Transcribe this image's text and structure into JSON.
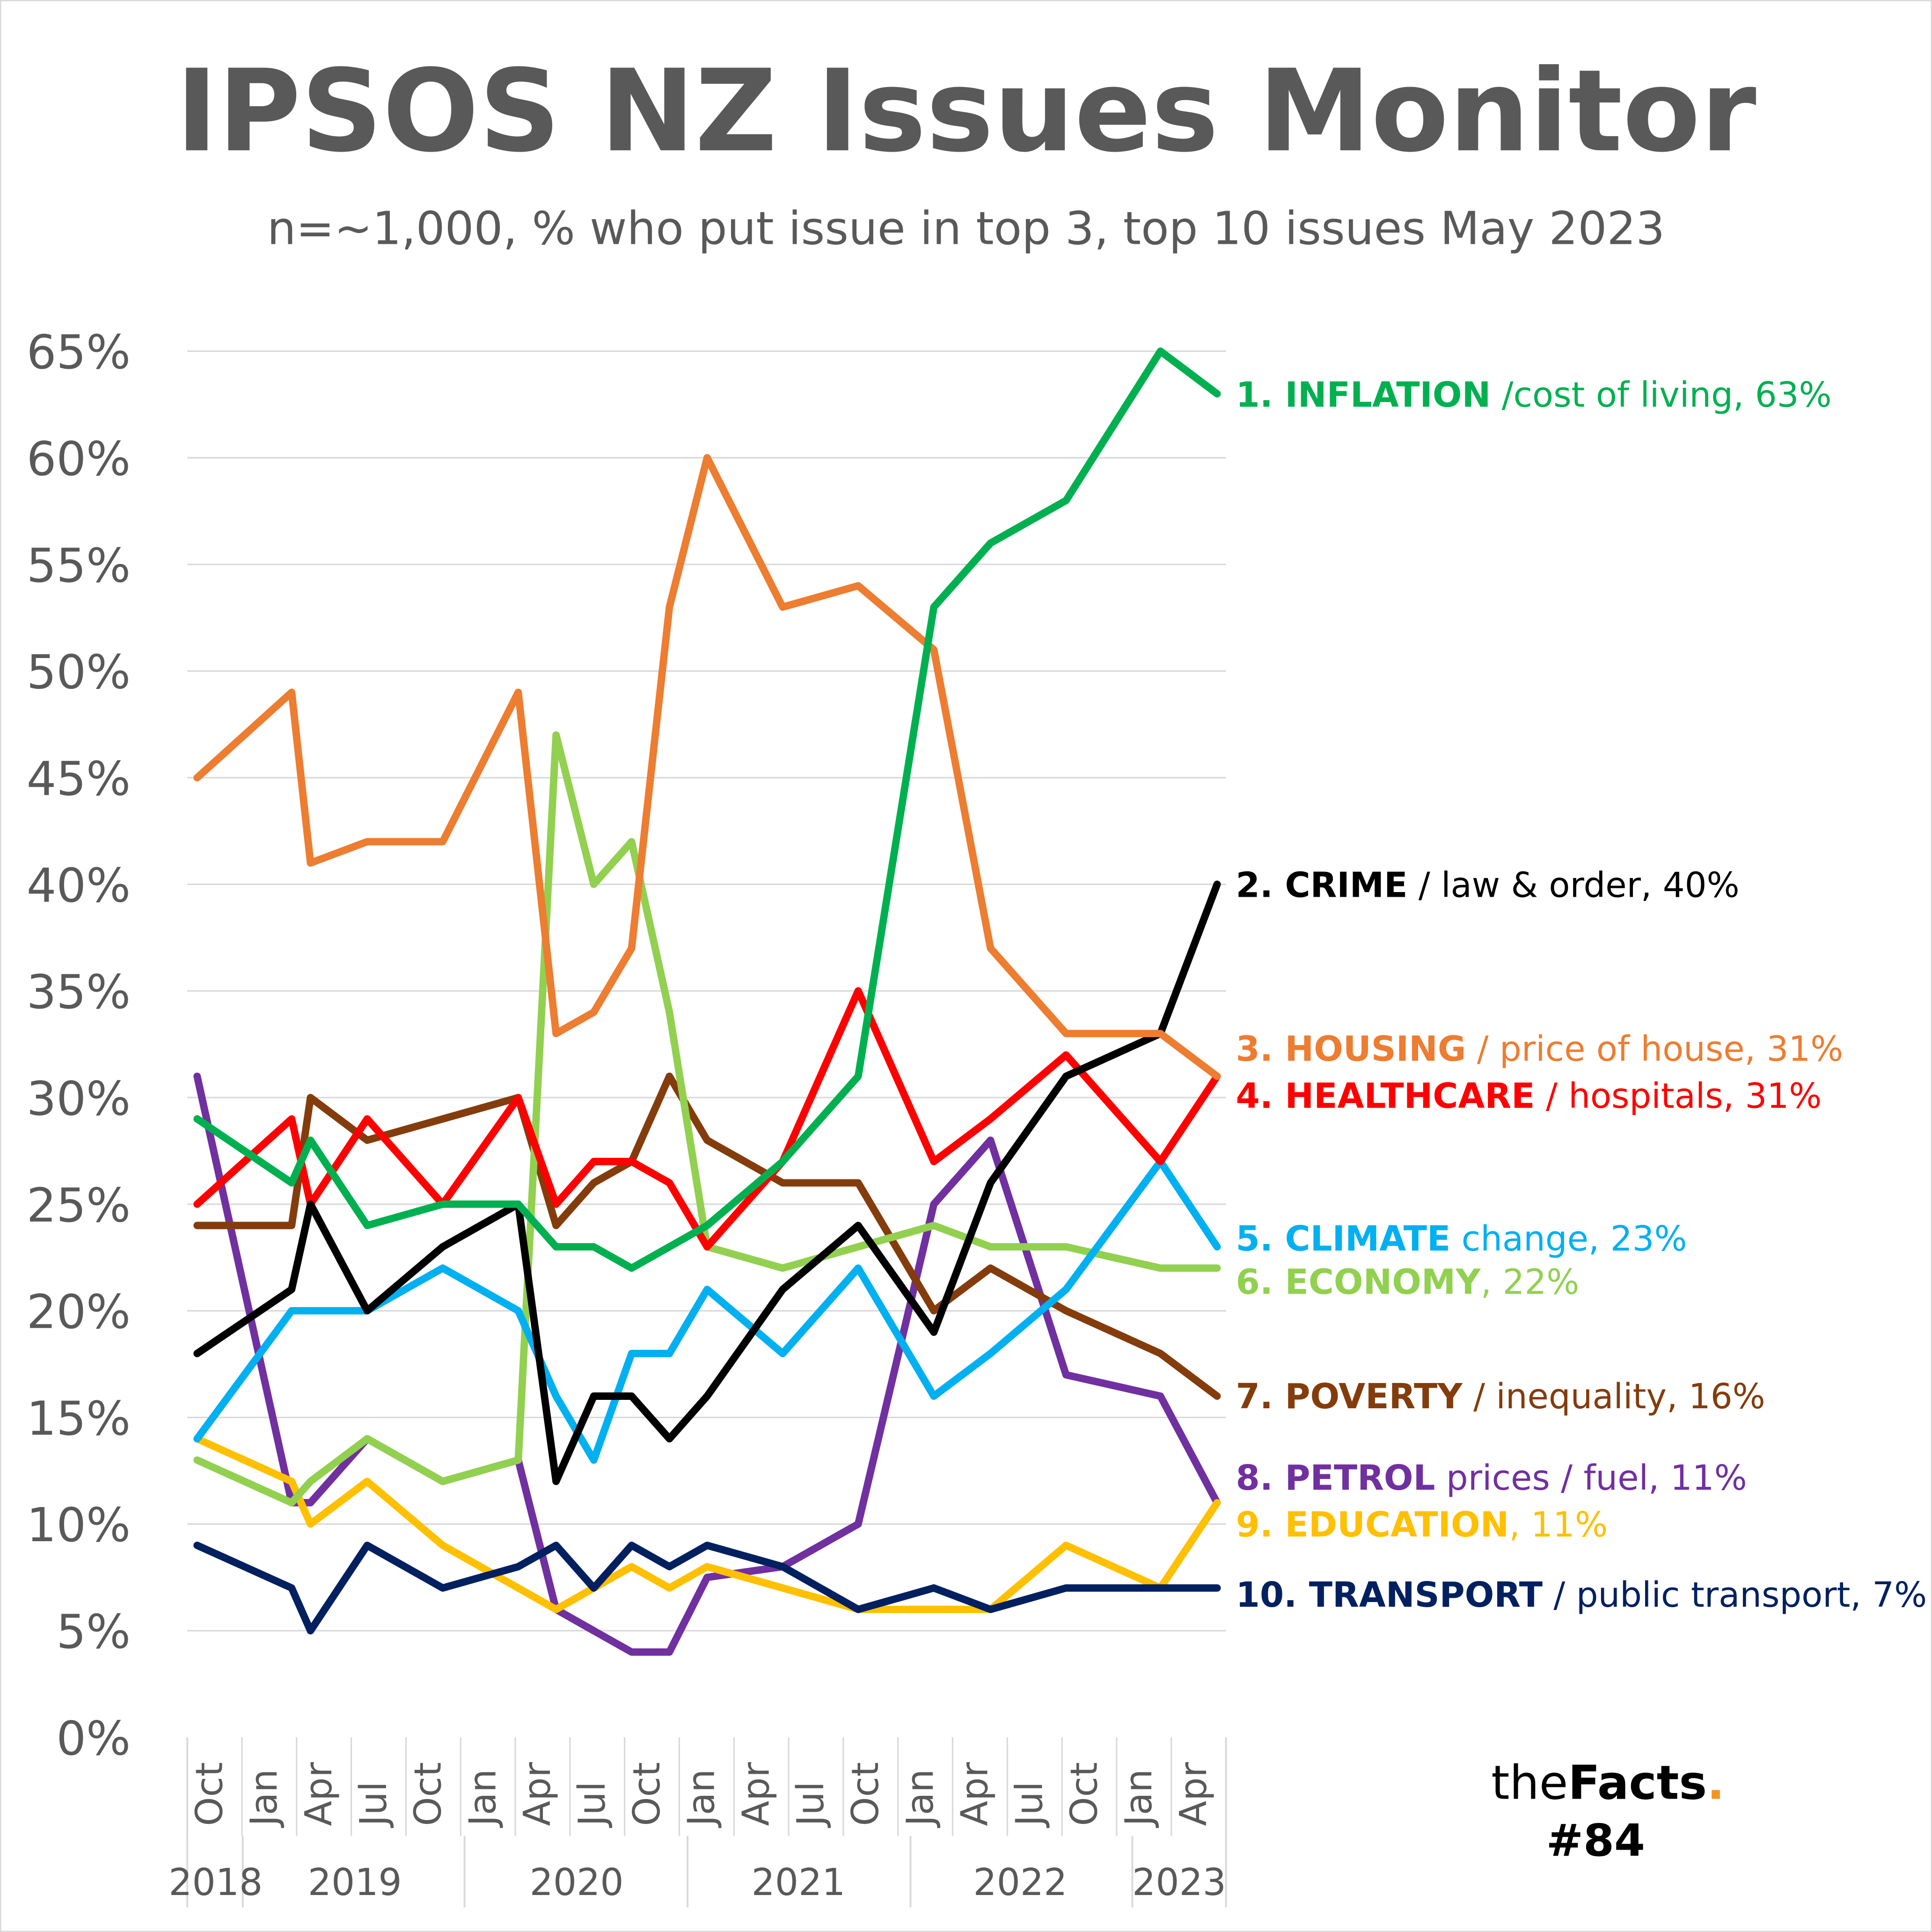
{
  "chart_data": {
    "type": "line",
    "title": "IPSOS NZ Issues Monitor",
    "subtitle": "n=~1,000, % who put issue in top 3, top 10 issues May 2023",
    "xlabel": "",
    "ylabel": "",
    "ylim": [
      0,
      65
    ],
    "y_ticks": [
      "0%",
      "5%",
      "10%",
      "15%",
      "20%",
      "25%",
      "30%",
      "35%",
      "40%",
      "45%",
      "50%",
      "55%",
      "60%",
      "65%"
    ],
    "x_unit": "months since Oct 2018",
    "x_tick_labels": [
      "Oct",
      "Jan",
      "Apr",
      "Jul",
      "Oct",
      "Jan",
      "Apr",
      "Jul",
      "Oct",
      "Jan",
      "Apr",
      "Jul",
      "Oct",
      "Jan",
      "Apr",
      "Jul",
      "Oct",
      "Jan",
      "Apr"
    ],
    "year_labels": [
      "2018",
      "2019",
      "2020",
      "2021",
      "2022",
      "2023"
    ],
    "x": [
      0,
      5,
      6,
      9,
      13,
      17,
      19,
      21,
      23,
      25,
      27,
      31,
      35,
      39,
      42,
      46,
      51,
      54
    ],
    "grid": true,
    "series": [
      {
        "name": "INFLATION",
        "rank": "1.",
        "label_bold": "1. INFLATION",
        "label_rest": " /cost of living, 63%",
        "color": "#00B050",
        "values": [
          29,
          26,
          28,
          24,
          25,
          25,
          23,
          23,
          22,
          23,
          24,
          27,
          31,
          53,
          56,
          58,
          65,
          63
        ]
      },
      {
        "name": "CRIME",
        "rank": "2.",
        "label_bold": "2. CRIME",
        "label_rest": " / law & order, 40%",
        "color": "#000000",
        "values": [
          18,
          21,
          25,
          20,
          23,
          25,
          12,
          16,
          16,
          14,
          16,
          21,
          24,
          19,
          26,
          31,
          33,
          40
        ]
      },
      {
        "name": "HOUSING",
        "rank": "3.",
        "label_bold": "3. HOUSING",
        "label_rest": " / price of house, 31%",
        "color": "#ED7D31",
        "values": [
          45,
          49,
          41,
          42,
          42,
          49,
          33,
          34,
          37,
          53,
          60,
          53,
          54,
          51,
          37,
          33,
          33,
          31
        ]
      },
      {
        "name": "HEALTHCARE",
        "rank": "4.",
        "label_bold": "4. HEALTHCARE",
        "label_rest": " / hospitals, 31%",
        "color": "#FF0000",
        "values": [
          25,
          29,
          25,
          29,
          25,
          30,
          25,
          27,
          27,
          26,
          23,
          27,
          35,
          27,
          29,
          32,
          27,
          31
        ]
      },
      {
        "name": "CLIMATE",
        "rank": "5.",
        "label_bold": "5. CLIMATE",
        "label_rest": " change, 23%",
        "color": "#00B0F0",
        "values": [
          14,
          20,
          20,
          20,
          22,
          20,
          16,
          13,
          18,
          18,
          21,
          18,
          22,
          16,
          18,
          21,
          27,
          23
        ]
      },
      {
        "name": "ECONOMY",
        "rank": "6.",
        "label_bold": "6. ECONOMY",
        "label_rest": ", 22%",
        "color": "#92D050",
        "values": [
          13,
          11,
          12,
          14,
          12,
          13,
          47,
          40,
          42,
          34,
          23,
          22,
          23,
          24,
          23,
          23,
          22,
          22
        ]
      },
      {
        "name": "POVERTY",
        "rank": "7.",
        "label_bold": "7. POVERTY",
        "label_rest": " / inequality, 16%",
        "color": "#843C0C",
        "values": [
          24,
          24,
          30,
          28,
          29,
          30,
          24,
          26,
          27,
          31,
          28,
          26,
          26,
          20,
          22,
          20,
          18,
          16
        ]
      },
      {
        "name": "PETROL",
        "rank": "8.",
        "label_bold": "8. PETROL",
        "label_rest": " prices / fuel, 11%",
        "color": "#7030A0",
        "values": [
          31,
          11,
          11,
          14,
          12,
          13,
          6,
          5,
          4,
          4,
          7.5,
          8,
          10,
          25,
          28,
          17,
          16,
          11
        ]
      },
      {
        "name": "EDUCATION",
        "rank": "9.",
        "label_bold": "9. EDUCATION",
        "label_rest": ", 11%",
        "color": "#FFC000",
        "values": [
          14,
          12,
          10,
          12,
          9,
          7,
          6,
          7,
          8,
          7,
          8,
          7,
          6,
          6,
          6,
          9,
          7,
          11
        ]
      },
      {
        "name": "TRANSPORT",
        "rank": "10.",
        "label_bold": "10. TRANSPORT",
        "label_rest": " / public transport, 7%",
        "color": "#002060",
        "values": [
          9,
          7,
          5,
          9,
          7,
          8,
          9,
          7,
          9,
          8,
          9,
          8,
          6,
          7,
          6,
          7,
          7,
          7
        ]
      }
    ]
  },
  "branding": {
    "logo_the": "the",
    "logo_facts": "Facts",
    "logo_dot": ".",
    "issue": "#84",
    "accent": "#F7941D"
  }
}
